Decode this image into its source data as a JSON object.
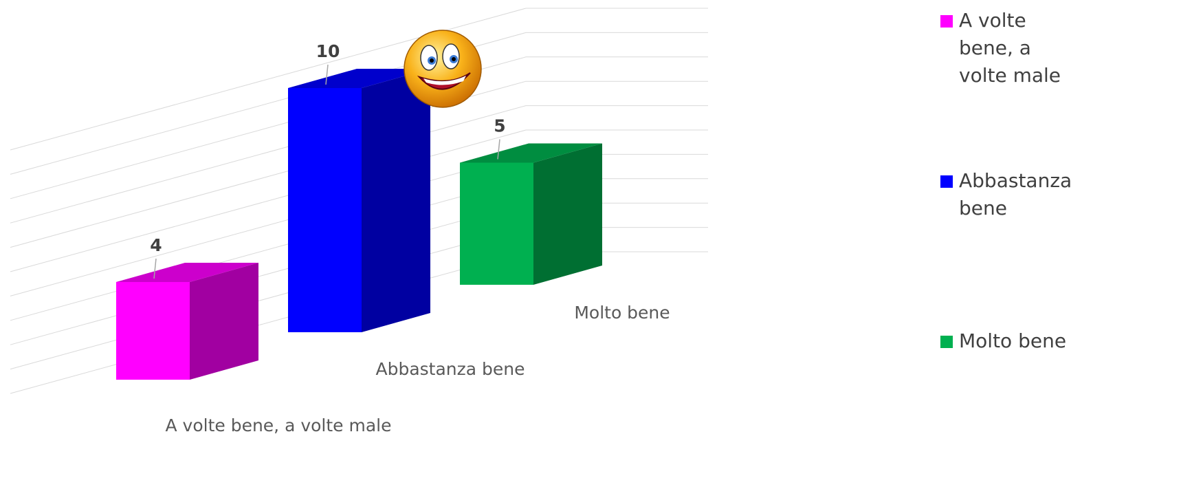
{
  "chart_data": {
    "type": "bar3d",
    "categories": [
      "A volte bene, a volte male",
      "Abbastanza bene",
      "Molto bene"
    ],
    "values": [
      4,
      10,
      5
    ],
    "colors": [
      "#ff00ff",
      "#0000ff",
      "#00b050"
    ],
    "ylim": [
      0,
      10
    ],
    "yticks": [
      0,
      1,
      2,
      3,
      4,
      5,
      6,
      7,
      8,
      9,
      10
    ],
    "grid": true,
    "legend": "right"
  }
}
